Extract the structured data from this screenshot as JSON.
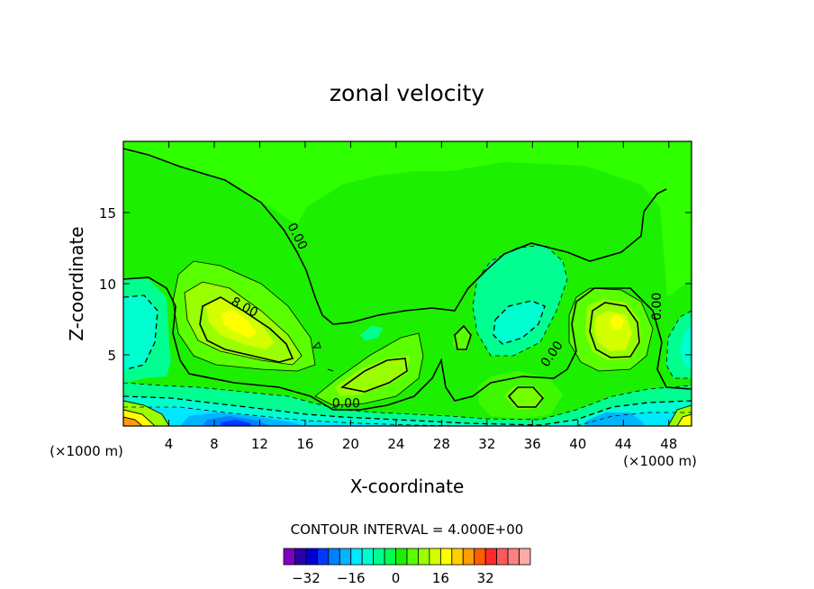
{
  "chart_data": {
    "type": "heatmap",
    "title": "zonal velocity",
    "xlabel": "X-coordinate",
    "ylabel": "Z-coordinate",
    "x_unit_label": "(×1000 m)",
    "x_unit_label_right": "(×1000 m)",
    "xlim": [
      0,
      50
    ],
    "ylim": [
      0,
      20
    ],
    "x_ticks": [
      4,
      8,
      12,
      16,
      20,
      24,
      28,
      32,
      36,
      40,
      44,
      48
    ],
    "y_ticks": [
      5,
      10,
      15
    ],
    "contour_interval_text": "CONTOUR INTERVAL = 4.000E+00",
    "contour_labels": [
      {
        "text": "0.00",
        "x": 15.0,
        "z": 13.2,
        "rotate": 62
      },
      {
        "text": "8.00",
        "x": 10.5,
        "z": 8.1,
        "rotate": 28
      },
      {
        "text": "0.00",
        "x": 19.6,
        "z": 1.3,
        "rotate": 0
      },
      {
        "text": "0.00",
        "x": 38.0,
        "z": 4.9,
        "rotate": -55
      },
      {
        "text": "0.00",
        "x": 47.3,
        "z": 8.4,
        "rotate": -90
      }
    ],
    "colorbar": {
      "colors": [
        "#8000c0",
        "#2a00a8",
        "#0000d0",
        "#0038ff",
        "#0080ff",
        "#00b4ff",
        "#00e8ff",
        "#00ffd0",
        "#00ff90",
        "#00ff50",
        "#1cf000",
        "#5aff00",
        "#9aff00",
        "#d4ff00",
        "#ffff00",
        "#ffd000",
        "#ff9c00",
        "#ff5e00",
        "#ff2a2a",
        "#ff5a5a",
        "#ff8080",
        "#ffa8a8"
      ],
      "tick_labels": [
        "−32",
        "−16",
        "0",
        "16",
        "32"
      ],
      "tick_values": [
        -32,
        -16,
        0,
        16,
        32
      ],
      "min": -40,
      "max": 48
    },
    "field_levels": [
      {
        "level": 0,
        "color": "#1cf000"
      },
      {
        "level": -4,
        "color": "#00ff50"
      },
      {
        "level": -8,
        "color": "#00ff90"
      },
      {
        "level": -12,
        "color": "#00ffd0"
      },
      {
        "level": -16,
        "color": "#00e8ff"
      },
      {
        "level": -20,
        "color": "#00b4ff"
      },
      {
        "level": -24,
        "color": "#0080ff"
      },
      {
        "level": 4,
        "color": "#5aff00"
      },
      {
        "level": 8,
        "color": "#9aff00"
      },
      {
        "level": 12,
        "color": "#d4ff00"
      },
      {
        "level": 16,
        "color": "#ffff00"
      },
      {
        "level": 20,
        "color": "#ffd000"
      },
      {
        "level": 24,
        "color": "#ff9c00"
      }
    ]
  }
}
